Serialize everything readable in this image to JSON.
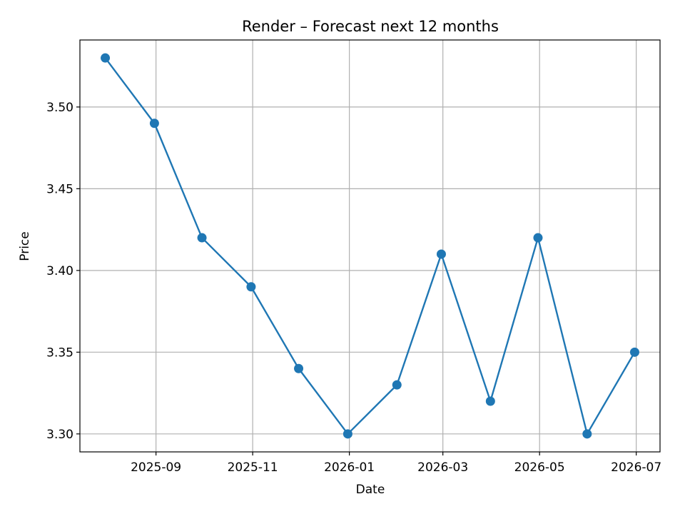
{
  "chart_data": {
    "type": "line",
    "title": "Render – Forecast next 12 months",
    "xlabel": "Date",
    "ylabel": "Price",
    "x": [
      "2025-07-31",
      "2025-08-31",
      "2025-09-30",
      "2025-10-31",
      "2025-11-30",
      "2025-12-31",
      "2026-01-31",
      "2026-02-28",
      "2026-03-31",
      "2026-04-30",
      "2026-05-31",
      "2026-06-30"
    ],
    "series": [
      {
        "values": [
          3.53,
          3.49,
          3.42,
          3.39,
          3.34,
          3.3,
          3.33,
          3.41,
          3.32,
          3.42,
          3.3,
          3.35
        ]
      }
    ],
    "xticks": [
      {
        "date": "2025-09-01",
        "label": "2025-09"
      },
      {
        "date": "2025-11-01",
        "label": "2025-11"
      },
      {
        "date": "2026-01-01",
        "label": "2026-01"
      },
      {
        "date": "2026-03-01",
        "label": "2026-03"
      },
      {
        "date": "2026-05-01",
        "label": "2026-05"
      },
      {
        "date": "2026-07-01",
        "label": "2026-07"
      }
    ],
    "yticks": [
      3.3,
      3.35,
      3.4,
      3.45,
      3.5
    ],
    "ytick_labels": [
      "3.30",
      "3.35",
      "3.40",
      "3.45",
      "3.50"
    ],
    "xlim": [
      "2025-07-15",
      "2026-07-16"
    ],
    "ylim": [
      3.289,
      3.541
    ],
    "grid": true,
    "colors": {
      "series": "#1f77b4",
      "grid": "#b0b0b0",
      "axes": "#000000"
    }
  }
}
